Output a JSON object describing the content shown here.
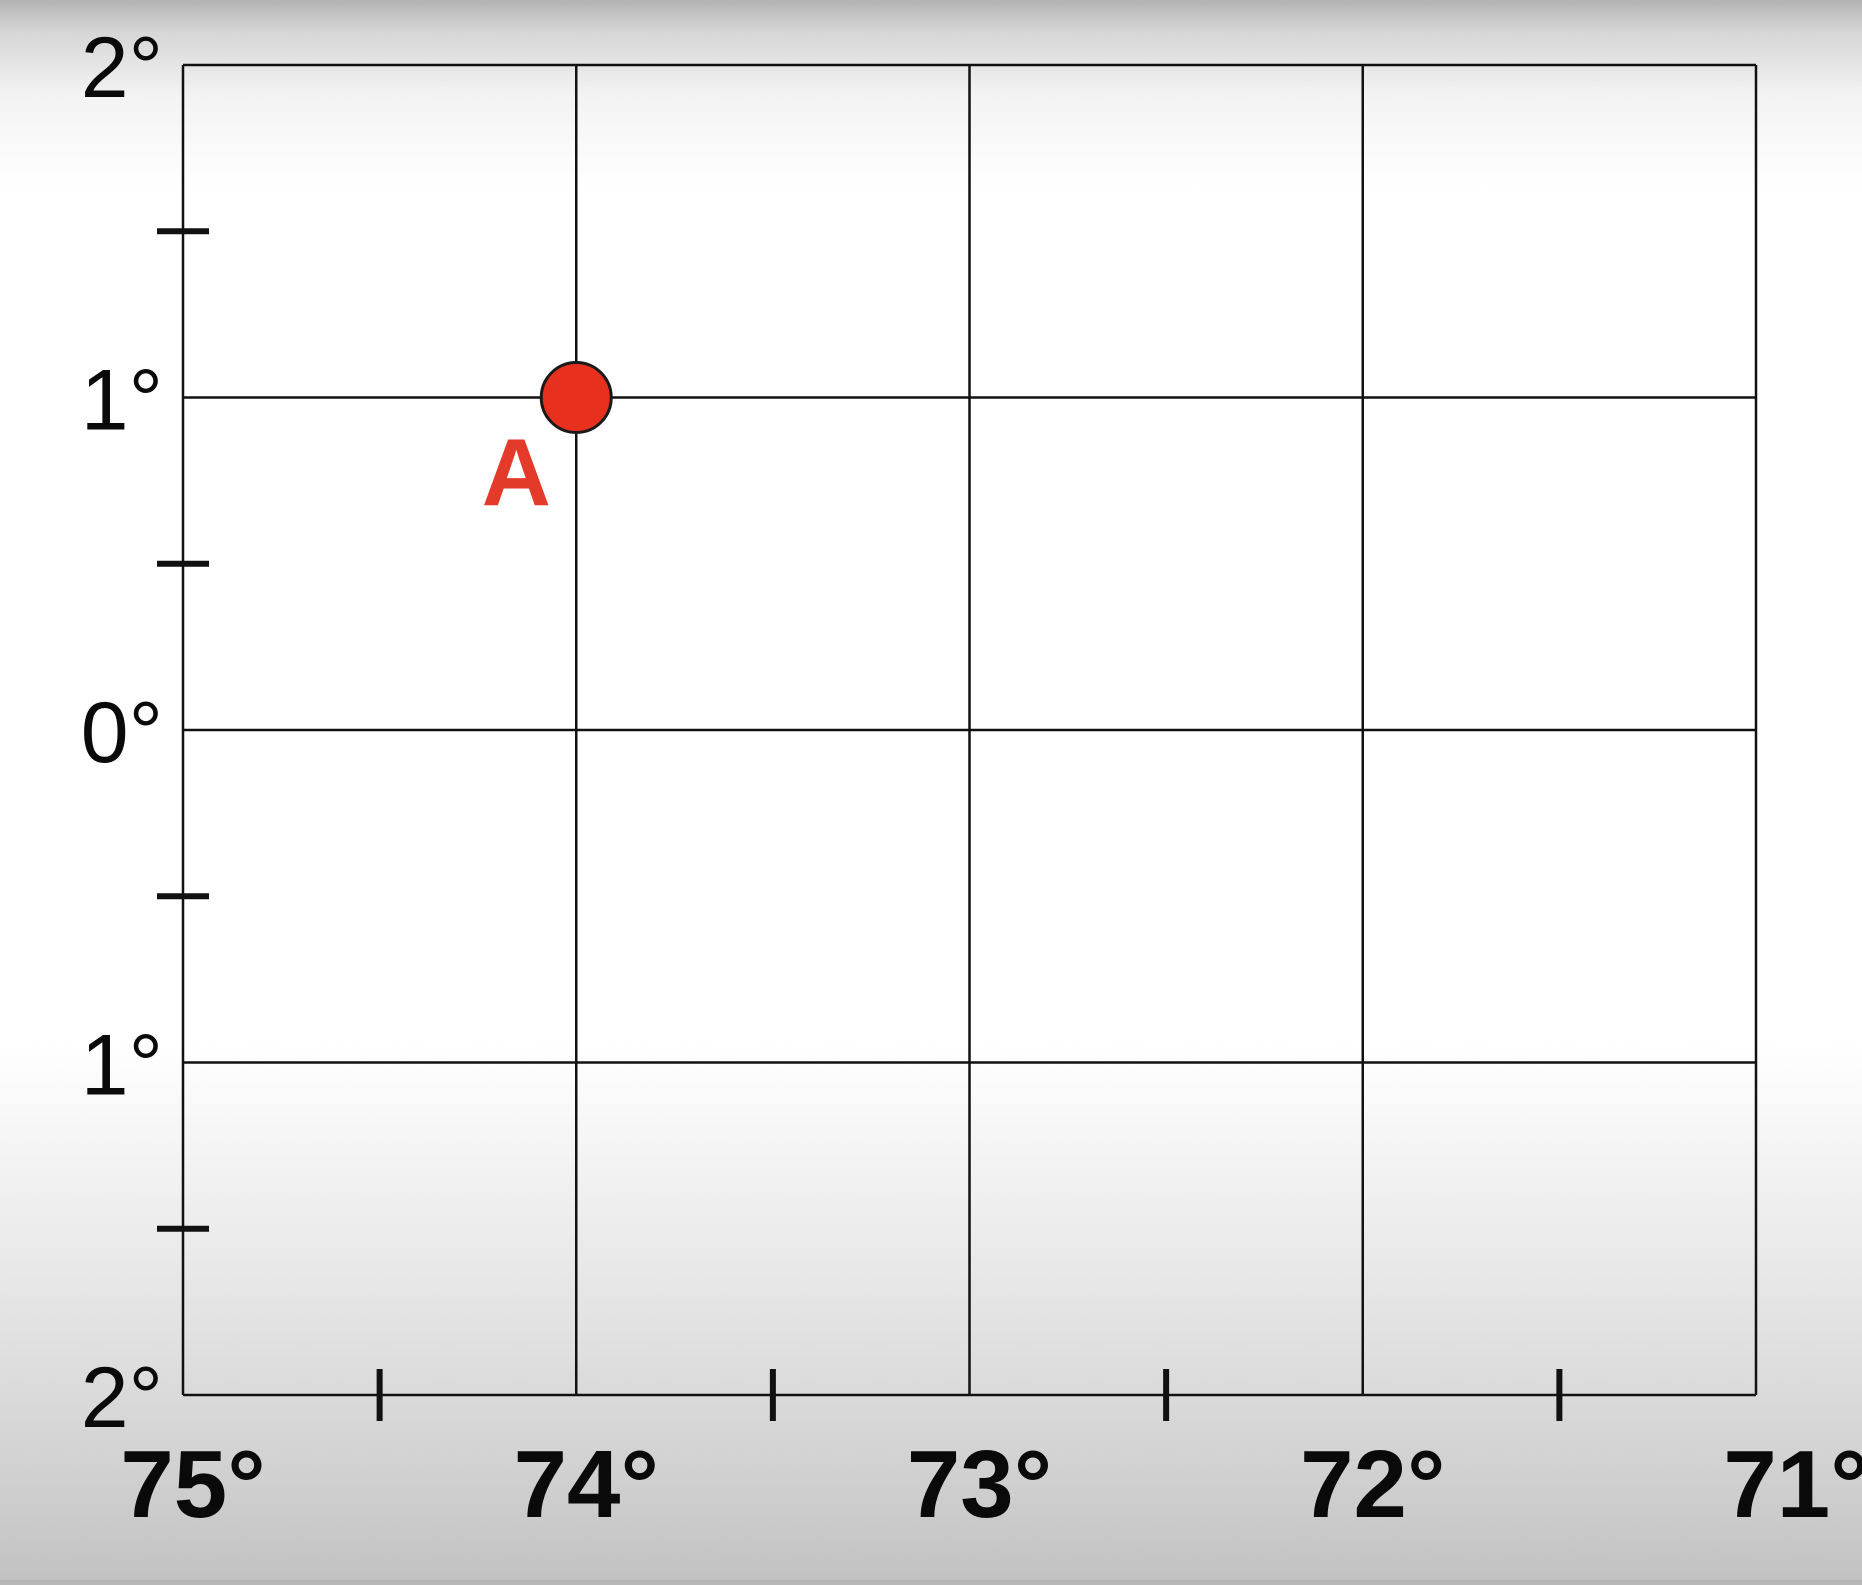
{
  "graph": {
    "longitudes": [
      75,
      74,
      73,
      72,
      71
    ],
    "latitudes": [
      2,
      1,
      0,
      -1,
      -2
    ],
    "longitude_labels": [
      "75°",
      "74°",
      "73°",
      "72°",
      "71°"
    ],
    "latitude_labels": [
      "2°",
      "1°",
      "0°",
      "1°",
      "2°"
    ],
    "minor_ticks_per_interval": 2
  },
  "point": {
    "label": "A",
    "longitude": 74,
    "latitude": 1,
    "color": "#e8301f"
  },
  "colors": {
    "grid": "#111111",
    "text": "#0a0a0a",
    "point_fill": "#e8301f",
    "point_label": "#e43a2a"
  }
}
